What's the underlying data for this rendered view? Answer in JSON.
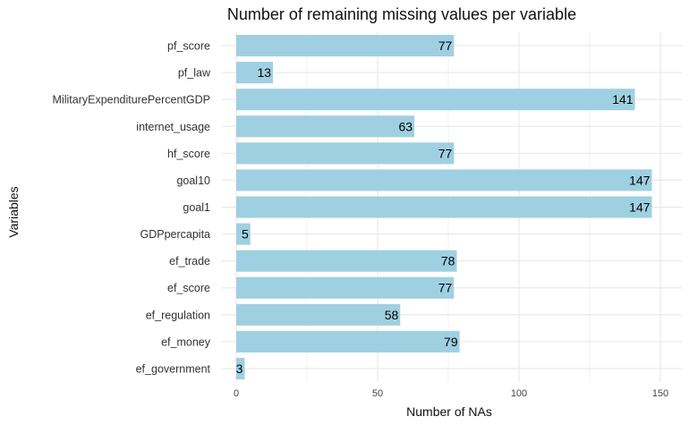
{
  "chart_data": {
    "type": "bar",
    "orientation": "horizontal",
    "title": "Number of remaining missing values per variable",
    "xlabel": "Number of NAs",
    "ylabel": "Variables",
    "categories": [
      "pf_score",
      "pf_law",
      "MilitaryExpenditurePercentGDP",
      "internet_usage",
      "hf_score",
      "goal10",
      "goal1",
      "GDPpercapita",
      "ef_trade",
      "ef_score",
      "ef_regulation",
      "ef_money",
      "ef_government"
    ],
    "values": [
      77,
      13,
      141,
      63,
      77,
      147,
      147,
      5,
      78,
      77,
      58,
      79,
      3
    ],
    "xlim": [
      0,
      150
    ],
    "xticks": [
      0,
      50,
      100,
      150
    ],
    "grid": true,
    "legend": "none",
    "bar_color": "#9fd0e1"
  }
}
